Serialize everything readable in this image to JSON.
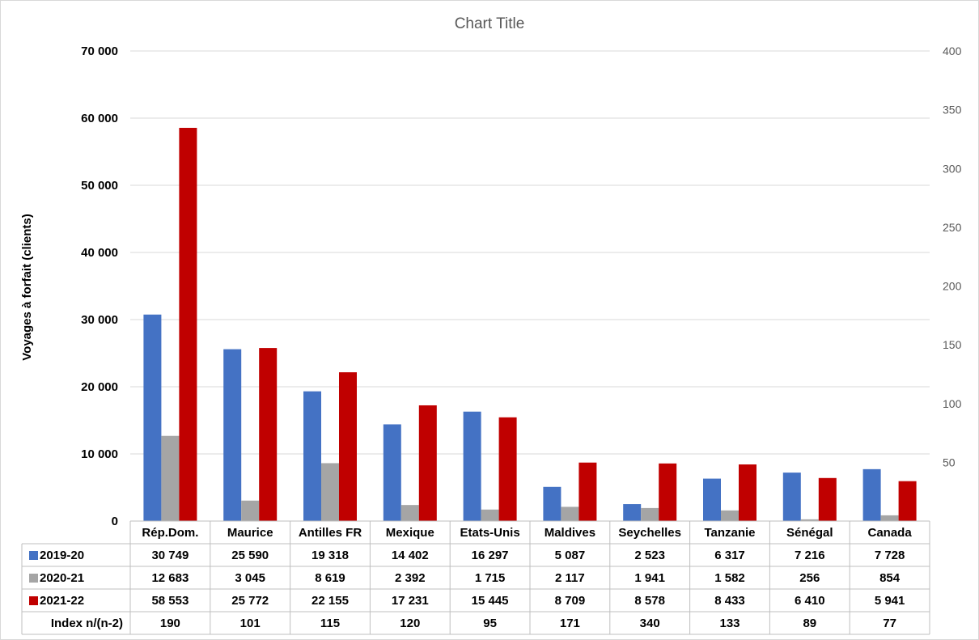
{
  "chart_data": {
    "type": "bar",
    "title": "Chart Title",
    "ylabel": "Voyages à forfait (clients)",
    "ylim": [
      0,
      70000
    ],
    "y_ticks": [
      "0",
      "10 000",
      "20 000",
      "30 000",
      "40 000",
      "50 000",
      "60 000",
      "70 000"
    ],
    "y2lim": [
      0,
      400
    ],
    "y2_ticks": [
      "50",
      "100",
      "150",
      "200",
      "250",
      "300",
      "350",
      "400"
    ],
    "grid": true,
    "legend": "data-table",
    "categories": [
      "Rép.Dom.",
      "Maurice",
      "Antilles FR",
      "Mexique",
      "Etats-Unis",
      "Maldives",
      "Seychelles",
      "Tanzanie",
      "Sénégal",
      "Canada"
    ],
    "series": [
      {
        "name": "2019-20",
        "color": "#4472c4",
        "values": [
          30749,
          25590,
          19318,
          14402,
          16297,
          5087,
          2523,
          6317,
          7216,
          7728
        ],
        "labels": [
          "30 749",
          "25 590",
          "19 318",
          "14 402",
          "16 297",
          "5 087",
          "2 523",
          "6 317",
          "7 216",
          "7 728"
        ]
      },
      {
        "name": "2020-21",
        "color": "#a5a5a5",
        "values": [
          12683,
          3045,
          8619,
          2392,
          1715,
          2117,
          1941,
          1582,
          256,
          854
        ],
        "labels": [
          "12 683",
          "3 045",
          "8 619",
          "2 392",
          "1 715",
          "2 117",
          "1 941",
          "1 582",
          "256",
          "854"
        ]
      },
      {
        "name": "2021-22",
        "color": "#c00000",
        "values": [
          58553,
          25772,
          22155,
          17231,
          15445,
          8709,
          8578,
          8433,
          6410,
          5941
        ],
        "labels": [
          "58 553",
          "25 772",
          "22 155",
          "17 231",
          "15 445",
          "8 709",
          "8 578",
          "8 433",
          "6 410",
          "5 941"
        ]
      }
    ],
    "index_row": {
      "name": "Index n/(n-2)",
      "values": [
        "190",
        "101",
        "115",
        "120",
        "95",
        "171",
        "340",
        "133",
        "89",
        "77"
      ]
    }
  }
}
